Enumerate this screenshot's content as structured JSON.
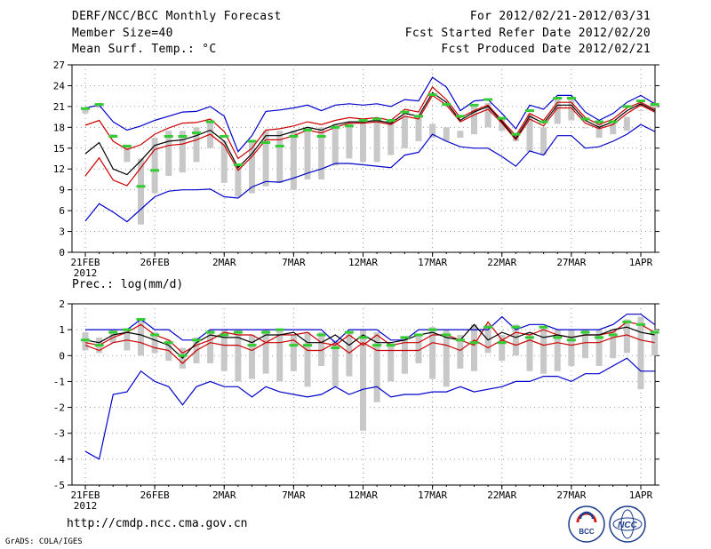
{
  "header": {
    "title": "DERF/NCC/BCC Monthly Forecast",
    "member_size": "Member Size=40",
    "variable": "Mean Surf. Temp.: °C",
    "forecast_for": "For 2012/02/21-2012/03/31",
    "started_refer": "Fcst Started Refer Date 2012/02/20",
    "produced": "Fcst Produced Date 2012/02/21"
  },
  "footer": {
    "url": "http://cmdp.ncc.cma.gov.cn",
    "credit": "GrADS: COLA/IGES",
    "logo_bcc": "BCC",
    "logo_ncc": "NCC"
  },
  "colors": {
    "max": "#0000cc",
    "min": "#0000cc",
    "upper": "#cc0000",
    "lower": "#cc0000",
    "mean": "#000000",
    "bar": "#c8c8c8",
    "median": "#33cc33",
    "grid": "#999999"
  },
  "chart_data": [
    {
      "type": "line",
      "title": "Mean Surf. Temp.: °C",
      "xlabel": "",
      "ylabel": "",
      "x_tick_labels": [
        "21FEB",
        "26FEB",
        "2MAR",
        "7MAR",
        "12MAR",
        "17MAR",
        "22MAR",
        "27MAR",
        "1APR"
      ],
      "x_tick_days": [
        0,
        5,
        10,
        15,
        20,
        25,
        30,
        35,
        40
      ],
      "x_sublabel": "2012",
      "ylim": [
        0,
        27
      ],
      "yticks": [
        0,
        3,
        6,
        9,
        12,
        15,
        18,
        21,
        24,
        27
      ],
      "grid": true,
      "series": [
        {
          "name": "max",
          "values": [
            20.8,
            21.2,
            18.8,
            17.6,
            18.2,
            19.0,
            19.6,
            20.2,
            20.3,
            21.0,
            19.6,
            14.5,
            16.8,
            20.3,
            20.5,
            20.8,
            21.2,
            20.4,
            21.2,
            21.4,
            21.2,
            21.4,
            21.0,
            22.0,
            21.8,
            25.2,
            23.8,
            20.4,
            21.8,
            22.0,
            20.0,
            17.8,
            21.2,
            20.6,
            22.6,
            22.6,
            20.2,
            19.0,
            20.0,
            21.6,
            22.6,
            21.4
          ]
        },
        {
          "name": "upper",
          "values": [
            18.3,
            19.0,
            16.0,
            14.8,
            15.5,
            17.0,
            17.9,
            18.6,
            18.7,
            19.2,
            17.4,
            13.5,
            15.0,
            17.6,
            17.8,
            18.2,
            18.8,
            18.4,
            19.0,
            19.4,
            19.2,
            19.4,
            19.0,
            20.6,
            20.2,
            23.8,
            22.0,
            19.4,
            20.4,
            21.2,
            19.0,
            16.8,
            20.0,
            19.0,
            21.6,
            21.6,
            19.4,
            18.4,
            19.2,
            20.8,
            21.6,
            20.6
          ]
        },
        {
          "name": "mean",
          "values": [
            14.2,
            15.8,
            12.0,
            11.2,
            13.2,
            15.4,
            16.0,
            16.2,
            16.8,
            17.6,
            16.0,
            12.2,
            14.2,
            16.8,
            16.8,
            17.4,
            18.0,
            17.6,
            18.4,
            18.8,
            18.8,
            19.0,
            18.6,
            20.0,
            19.6,
            23.0,
            21.6,
            19.0,
            20.2,
            21.0,
            18.8,
            16.4,
            19.6,
            18.6,
            21.2,
            21.2,
            19.0,
            18.0,
            18.8,
            20.4,
            21.4,
            20.4
          ]
        },
        {
          "name": "lower",
          "values": [
            11.0,
            13.6,
            10.4,
            9.6,
            12.2,
            14.8,
            15.4,
            15.6,
            16.2,
            17.0,
            15.4,
            11.8,
            13.8,
            16.2,
            16.2,
            16.8,
            17.6,
            17.2,
            18.0,
            18.6,
            18.6,
            18.8,
            18.4,
            19.6,
            19.2,
            22.6,
            21.2,
            18.8,
            19.8,
            20.6,
            18.6,
            16.2,
            19.2,
            18.2,
            20.8,
            20.8,
            18.6,
            17.8,
            18.4,
            20.0,
            21.2,
            20.2
          ]
        },
        {
          "name": "min",
          "values": [
            4.5,
            7.0,
            5.8,
            4.4,
            6.2,
            8.0,
            8.8,
            9.0,
            9.0,
            9.1,
            8.0,
            7.8,
            9.4,
            10.2,
            10.1,
            10.7,
            11.4,
            12.0,
            12.8,
            12.8,
            12.6,
            12.4,
            12.2,
            14.0,
            14.4,
            17.0,
            16.0,
            15.2,
            15.0,
            15.0,
            13.8,
            12.4,
            14.6,
            14.0,
            16.8,
            16.8,
            15.0,
            15.2,
            16.0,
            17.0,
            18.4,
            17.4
          ]
        },
        {
          "name": "median",
          "values": [
            20.7,
            21.3,
            16.7,
            15.3,
            9.5,
            11.8,
            16.7,
            16.7,
            17.2,
            18.8,
            16.7,
            12.6,
            16.0,
            15.8,
            15.3,
            16.7,
            17.6,
            16.7,
            18.0,
            18.2,
            19.0,
            19.2,
            19.0,
            20.2,
            19.6,
            22.7,
            21.3,
            19.6,
            21.2,
            22.0,
            19.3,
            17.0,
            20.4,
            18.8,
            22.2,
            22.2,
            19.2,
            18.8,
            18.8,
            21.0,
            21.8,
            21.3
          ]
        },
        {
          "name": "bar_top",
          "values": [
            20.8,
            21.3,
            17.0,
            15.5,
            13.5,
            16.5,
            17.5,
            17.5,
            18.0,
            19.0,
            16.0,
            12.5,
            16.0,
            17.5,
            17.5,
            17.5,
            18.0,
            18.0,
            18.5,
            18.5,
            19.0,
            19.0,
            19.0,
            19.5,
            19.5,
            18.5,
            18.0,
            17.5,
            21.0,
            21.5,
            19.5,
            17.0,
            20.0,
            18.0,
            22.0,
            22.0,
            18.0,
            18.5,
            19.0,
            19.5,
            20.5,
            21.5
          ]
        },
        {
          "name": "bar_bottom",
          "values": [
            20.0,
            20.8,
            16.5,
            13.0,
            4.0,
            8.5,
            11.0,
            11.5,
            13.0,
            15.0,
            10.0,
            8.0,
            8.5,
            9.5,
            10.0,
            9.0,
            10.5,
            10.5,
            12.5,
            13.5,
            13.0,
            13.0,
            14.0,
            15.0,
            16.0,
            16.5,
            16.0,
            16.5,
            17.0,
            18.0,
            17.5,
            16.0,
            14.5,
            14.0,
            18.5,
            19.0,
            18.0,
            16.5,
            17.0,
            17.5,
            20.5,
            20.8
          ]
        }
      ]
    },
    {
      "type": "line",
      "title": "Prec.: log(mm/d)",
      "xlabel": "",
      "ylabel": "",
      "x_tick_labels": [
        "21FEB",
        "26FEB",
        "2MAR",
        "7MAR",
        "12MAR",
        "17MAR",
        "22MAR",
        "27MAR",
        "1APR"
      ],
      "x_tick_days": [
        0,
        5,
        10,
        15,
        20,
        25,
        30,
        35,
        40
      ],
      "x_sublabel": "2012",
      "ylim": [
        -5,
        2
      ],
      "yticks": [
        -5,
        -4,
        -3,
        -2,
        -1,
        0,
        1,
        2
      ],
      "grid": true,
      "series": [
        {
          "name": "max",
          "values": [
            1.0,
            1.0,
            1.0,
            1.0,
            1.4,
            1.0,
            1.0,
            0.6,
            0.6,
            1.0,
            1.0,
            1.0,
            1.0,
            1.0,
            1.0,
            1.0,
            1.0,
            1.0,
            0.5,
            1.0,
            1.0,
            1.0,
            0.6,
            0.6,
            1.0,
            1.0,
            1.0,
            1.0,
            1.0,
            1.0,
            1.5,
            1.0,
            1.2,
            1.2,
            1.0,
            1.0,
            1.0,
            1.0,
            1.2,
            1.6,
            1.6,
            1.2
          ]
        },
        {
          "name": "upper",
          "values": [
            0.5,
            0.4,
            0.7,
            0.9,
            1.2,
            0.8,
            0.6,
            0.1,
            0.4,
            0.6,
            0.9,
            0.8,
            0.8,
            0.5,
            0.8,
            0.8,
            0.9,
            0.5,
            0.4,
            0.8,
            0.4,
            0.8,
            0.4,
            0.5,
            0.5,
            0.8,
            0.8,
            0.6,
            0.4,
            1.3,
            0.6,
            0.9,
            0.8,
            1.0,
            0.8,
            0.7,
            0.8,
            0.8,
            0.9,
            1.3,
            1.2,
            0.9
          ]
        },
        {
          "name": "mean",
          "values": [
            0.6,
            0.5,
            0.8,
            0.9,
            0.8,
            0.6,
            0.4,
            -0.1,
            0.5,
            0.8,
            0.7,
            0.7,
            0.5,
            0.8,
            0.8,
            0.9,
            0.5,
            0.5,
            0.8,
            0.4,
            0.8,
            0.5,
            0.5,
            0.6,
            0.8,
            0.9,
            0.7,
            0.6,
            1.2,
            0.6,
            0.9,
            0.7,
            0.9,
            0.7,
            0.8,
            0.7,
            0.8,
            0.8,
            1.0,
            1.1,
            0.9,
            0.8
          ]
        },
        {
          "name": "lower",
          "values": [
            0.4,
            0.2,
            0.5,
            0.6,
            0.5,
            0.3,
            0.2,
            -0.3,
            0.2,
            0.5,
            0.4,
            0.4,
            0.2,
            0.5,
            0.5,
            0.6,
            0.2,
            0.2,
            0.5,
            0.1,
            0.5,
            0.2,
            0.2,
            0.2,
            0.2,
            0.5,
            0.4,
            0.2,
            0.6,
            0.3,
            0.6,
            0.4,
            0.6,
            0.4,
            0.5,
            0.4,
            0.5,
            0.5,
            0.7,
            0.8,
            0.6,
            0.5
          ]
        },
        {
          "name": "min",
          "values": [
            -3.7,
            -4.0,
            -1.5,
            -1.4,
            -0.6,
            -1.0,
            -1.2,
            -1.9,
            -1.2,
            -1.0,
            -1.2,
            -1.2,
            -1.6,
            -1.2,
            -1.4,
            -1.5,
            -1.6,
            -1.5,
            -1.2,
            -1.5,
            -1.3,
            -1.2,
            -1.6,
            -1.5,
            -1.5,
            -1.4,
            -1.4,
            -1.2,
            -1.4,
            -1.3,
            -1.2,
            -1.0,
            -1.0,
            -0.8,
            -0.8,
            -1.0,
            -0.7,
            -0.7,
            -0.4,
            -0.1,
            -0.6,
            -0.6
          ]
        },
        {
          "name": "median",
          "values": [
            0.6,
            0.4,
            0.9,
            1.0,
            1.4,
            0.8,
            0.5,
            0.0,
            0.6,
            0.9,
            0.8,
            0.9,
            0.4,
            0.9,
            1.0,
            0.4,
            0.4,
            0.8,
            0.3,
            0.9,
            0.7,
            0.4,
            0.4,
            0.7,
            0.8,
            1.0,
            0.8,
            0.6,
            0.5,
            1.1,
            0.5,
            1.1,
            0.7,
            1.1,
            0.7,
            0.6,
            0.9,
            0.7,
            0.8,
            1.3,
            1.2,
            0.9
          ]
        },
        {
          "name": "bar_top",
          "values": [
            0.9,
            0.7,
            1.0,
            1.0,
            1.4,
            0.9,
            0.6,
            0.3,
            0.7,
            1.0,
            1.0,
            1.0,
            0.8,
            1.0,
            1.0,
            0.8,
            0.9,
            0.9,
            0.6,
            0.9,
            1.0,
            0.9,
            0.5,
            0.7,
            0.8,
            1.1,
            1.0,
            0.8,
            1.2,
            1.2,
            0.8,
            1.2,
            0.9,
            1.1,
            1.0,
            1.0,
            1.0,
            1.0,
            1.0,
            1.4,
            1.5,
            1.0
          ]
        },
        {
          "name": "bar_bottom",
          "values": [
            0.2,
            0.1,
            0.5,
            0.2,
            0.0,
            0.1,
            -0.2,
            -0.5,
            -0.3,
            -0.3,
            -0.6,
            -1.0,
            -0.9,
            -0.7,
            -1.0,
            -0.6,
            -1.2,
            -0.4,
            -1.2,
            -0.8,
            -2.9,
            -1.8,
            -1.0,
            -0.7,
            -0.3,
            -0.9,
            -1.2,
            -0.5,
            -0.6,
            0.1,
            -0.2,
            0.0,
            -0.6,
            -0.7,
            -0.6,
            -0.4,
            -0.1,
            -0.4,
            -0.1,
            0.1,
            -1.3,
            0.0
          ]
        }
      ]
    }
  ]
}
